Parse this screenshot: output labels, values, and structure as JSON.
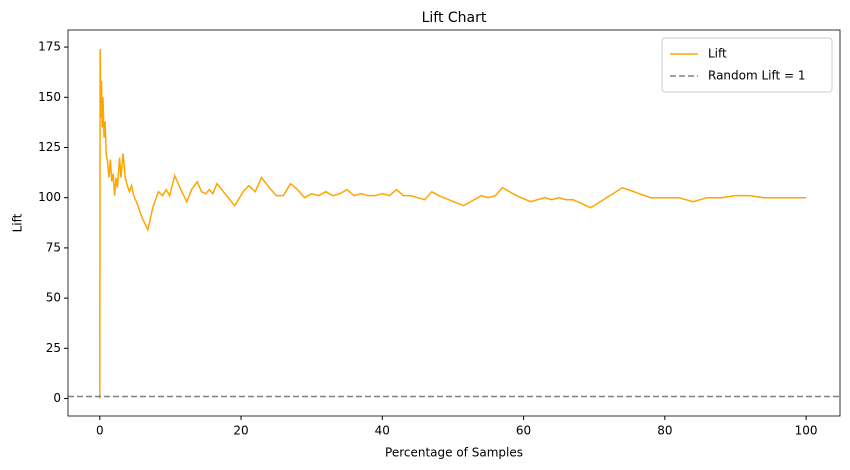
{
  "chart_data": {
    "type": "line",
    "title": "Lift Chart",
    "xlabel": "Percentage of Samples",
    "ylabel": "Lift",
    "x": [
      0,
      0.05,
      0.15,
      0.25,
      0.35,
      0.45,
      0.6,
      0.75,
      0.9,
      1.1,
      1.3,
      1.5,
      1.7,
      1.9,
      2.1,
      2.3,
      2.5,
      2.8,
      3.0,
      3.3,
      3.6,
      3.9,
      4.2,
      4.5,
      4.8,
      5.3,
      6.0,
      6.8,
      7.5,
      8.3,
      8.9,
      9.4,
      9.9,
      10.6,
      11.5,
      12.3,
      13.0,
      13.8,
      14.4,
      15.0,
      15.5,
      16.0,
      16.6,
      17.5,
      19.1,
      20.3,
      21.1,
      22.0,
      22.9,
      24,
      25,
      26,
      27,
      28,
      29,
      30,
      31,
      32,
      33,
      34,
      35,
      36,
      37,
      38,
      39,
      40,
      41,
      42,
      43,
      44,
      45,
      46,
      47,
      48,
      51.5,
      54,
      55,
      56,
      57,
      59,
      61,
      62,
      63,
      64,
      65,
      66,
      67,
      69.5,
      74,
      78,
      80,
      82,
      84,
      86,
      88,
      90,
      92,
      94,
      96,
      98,
      100
    ],
    "series": [
      {
        "name": "Lift",
        "color": "#ffa500",
        "values": [
          0,
          174,
          140,
          158,
          135,
          150,
          130,
          138,
          122,
          118,
          110,
          119,
          108,
          112,
          101,
          110,
          105,
          120,
          110,
          122,
          110,
          106,
          103,
          106,
          101,
          97,
          90,
          84,
          95,
          103,
          101,
          104,
          101,
          111,
          104,
          98,
          104,
          108,
          103,
          102,
          104,
          102,
          107,
          103,
          96,
          103,
          106,
          103,
          110,
          105,
          101,
          101,
          107,
          104,
          100,
          102,
          101,
          103,
          101,
          102,
          104,
          101,
          102,
          101,
          101,
          102,
          101,
          104,
          101,
          101,
          100,
          99,
          103,
          101,
          96,
          101,
          100,
          101,
          105,
          101,
          98,
          99,
          100,
          99,
          100,
          99,
          99,
          95,
          105,
          100,
          100,
          100,
          98,
          100,
          100,
          101,
          101,
          100,
          100,
          100,
          100
        ]
      }
    ],
    "reference_lines": [
      {
        "name": "Random Lift = 1",
        "color": "#808080",
        "y": 1,
        "style": "dashed"
      }
    ],
    "xlim": [
      -4.5,
      104.8
    ],
    "ylim": [
      -8.7,
      183.5
    ],
    "xticks": [
      0,
      20,
      40,
      60,
      80,
      100
    ],
    "yticks": [
      0,
      25,
      50,
      75,
      100,
      125,
      150,
      175
    ],
    "legend": "upper right",
    "grid": false
  }
}
